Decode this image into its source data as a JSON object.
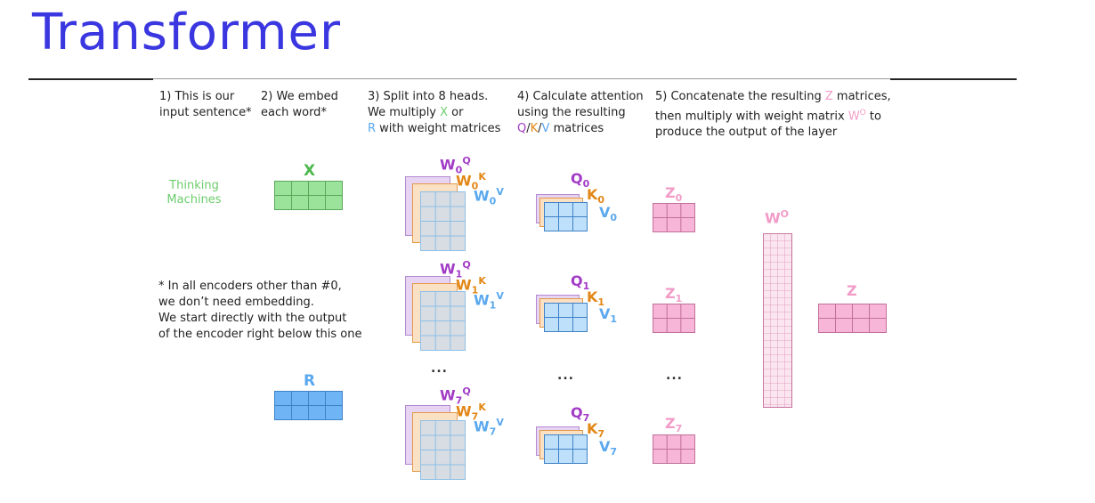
{
  "title": "Transformer",
  "steps": [
    {
      "lines": [
        "1) This is our",
        "input sentence*"
      ]
    },
    {
      "lines": [
        "2) We embed",
        "each word*"
      ]
    },
    {
      "line1": "3) Split into 8 heads.",
      "line2_pre": "We multiply ",
      "line2_x": "X",
      "line2_post": " or",
      "line3_r": "R",
      "line3_post": " with weight matrices"
    },
    {
      "line1": "4) Calculate attention",
      "line2": "using the resulting",
      "q": "Q",
      "sep1": "/",
      "k": "K",
      "sep2": "/",
      "v": "V",
      "line3_post": " matrices"
    },
    {
      "line1_pre": "5) Concatenate the resulting ",
      "line1_z": "Z",
      "line1_post": " matrices,",
      "line2_pre": "then multiply with weight matrix ",
      "line2_w": "W",
      "line2_sup": "O",
      "line2_post": " to",
      "line3": "produce the output of the layer"
    }
  ],
  "input_words": [
    "Thinking",
    "Machines"
  ],
  "embed_label": "X",
  "r_label": "R",
  "note": [
    "* In all encoders other than #0,",
    "we don’t need embedding.",
    "We start directly with the output",
    "of the encoder right below this one"
  ],
  "heads": [
    {
      "wq": "W",
      "wq_sub": "0",
      "wq_sup": "Q",
      "wk": "W",
      "wk_sub": "0",
      "wk_sup": "K",
      "wv": "W",
      "wv_sub": "0",
      "wv_sup": "V",
      "q": "Q",
      "q_sub": "0",
      "k": "K",
      "k_sub": "0",
      "v": "V",
      "v_sub": "0",
      "z": "Z",
      "z_sub": "0"
    },
    {
      "wq": "W",
      "wq_sub": "1",
      "wq_sup": "Q",
      "wk": "W",
      "wk_sub": "1",
      "wk_sup": "K",
      "wv": "W",
      "wv_sub": "1",
      "wv_sup": "V",
      "q": "Q",
      "q_sub": "1",
      "k": "K",
      "k_sub": "1",
      "v": "V",
      "v_sub": "1",
      "z": "Z",
      "z_sub": "1"
    },
    {
      "wq": "W",
      "wq_sub": "7",
      "wq_sup": "Q",
      "wk": "W",
      "wk_sub": "7",
      "wk_sup": "K",
      "wv": "W",
      "wv_sub": "7",
      "wv_sup": "V",
      "q": "Q",
      "q_sub": "7",
      "k": "K",
      "k_sub": "7",
      "v": "V",
      "v_sub": "7",
      "z": "Z",
      "z_sub": "7"
    }
  ],
  "ellipsis": "...",
  "wo": {
    "base": "W",
    "sup": "O"
  },
  "z_out": "Z",
  "colors": {
    "title": "#3a36e0",
    "green": "#6dcd6d",
    "green_fill": "#9be29b",
    "green_stroke": "#5aa95a",
    "blue": "#5aa8ee",
    "blue_fill": "#6fb4f5",
    "blue_stroke": "#3e82c7",
    "purple": "#a23bc6",
    "purple_fill": "#e7d4f2",
    "purple_stroke": "#b48ad0",
    "orange": "#e28716",
    "orange_fill": "#fbe1c4",
    "orange_stroke": "#e49a4a",
    "gray_fill": "#d8dde3",
    "lightblue_stroke": "#8cbfe8",
    "qkv_fill": "#bfe0fb",
    "pink": "#f29bc7",
    "pink_fill": "#f7b6d7",
    "pink_stroke": "#c2709b"
  }
}
